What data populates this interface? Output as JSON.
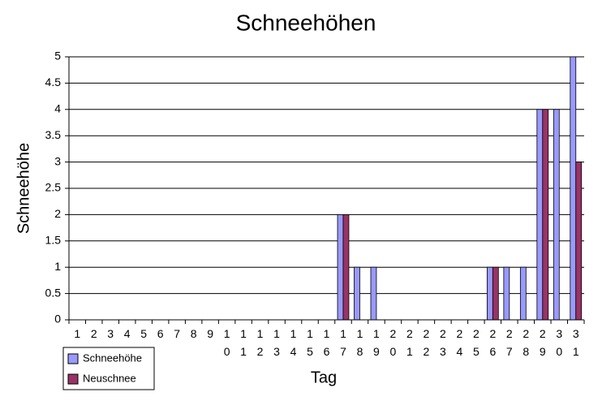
{
  "chart_data": {
    "type": "bar",
    "title": "Schneehöhen",
    "x_label": "Tag",
    "y_label": "Schneehöhe",
    "categories": [
      "1",
      "2",
      "3",
      "4",
      "5",
      "6",
      "7",
      "8",
      "9",
      "10",
      "11",
      "12",
      "13",
      "14",
      "15",
      "16",
      "17",
      "18",
      "19",
      "20",
      "21",
      "22",
      "23",
      "24",
      "25",
      "26",
      "27",
      "28",
      "29",
      "30",
      "31"
    ],
    "series": [
      {
        "name": "Schneehöhe",
        "color": "#9999ff",
        "values": [
          0,
          0,
          0,
          0,
          0,
          0,
          0,
          0,
          0,
          0,
          0,
          0,
          0,
          0,
          0,
          0,
          2,
          1,
          1,
          0,
          0,
          0,
          0,
          0,
          0,
          1,
          1,
          1,
          4,
          4,
          5
        ]
      },
      {
        "name": "Neuschnee",
        "color": "#993366",
        "values": [
          0,
          0,
          0,
          0,
          0,
          0,
          0,
          0,
          0,
          0,
          0,
          0,
          0,
          0,
          0,
          0,
          2,
          0,
          0,
          0,
          0,
          0,
          0,
          0,
          0,
          1,
          0,
          0,
          4,
          0,
          3
        ]
      }
    ],
    "ylim": [
      0,
      5
    ],
    "yticks": [
      0,
      0.5,
      1,
      1.5,
      2,
      2.5,
      3,
      3.5,
      4,
      4.5,
      5
    ],
    "grid": true,
    "legend": "bottom-left"
  }
}
